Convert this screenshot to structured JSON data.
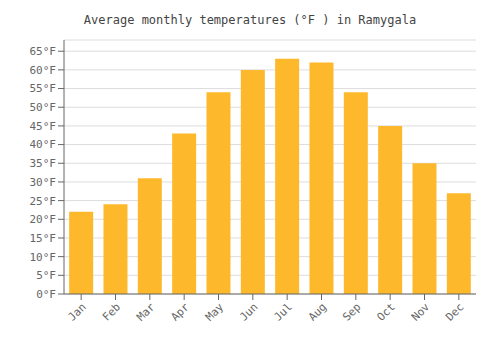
{
  "chart_data": {
    "type": "bar",
    "title": "Average monthly temperatures (°F ) in Ramygala",
    "categories": [
      "Jan",
      "Feb",
      "Mar",
      "Apr",
      "May",
      "Jun",
      "Jul",
      "Aug",
      "Sep",
      "Oct",
      "Nov",
      "Dec"
    ],
    "values": [
      22,
      24,
      31,
      43,
      54,
      60,
      63,
      62,
      54,
      45,
      35,
      27
    ],
    "color": "#FDB92B",
    "ylim": [
      0,
      68
    ],
    "yticks": [
      {
        "value": 0,
        "label": "0°F"
      },
      {
        "value": 5,
        "label": "5°F"
      },
      {
        "value": 10,
        "label": "10°F"
      },
      {
        "value": 15,
        "label": "15°F"
      },
      {
        "value": 20,
        "label": "20°F"
      },
      {
        "value": 25,
        "label": "25°F"
      },
      {
        "value": 30,
        "label": "30°F"
      },
      {
        "value": 35,
        "label": "35°F"
      },
      {
        "value": 40,
        "label": "40°F"
      },
      {
        "value": 45,
        "label": "45°F"
      },
      {
        "value": 50,
        "label": "50°F"
      },
      {
        "value": 55,
        "label": "55°F"
      },
      {
        "value": 60,
        "label": "60°F"
      },
      {
        "value": 65,
        "label": "65°F"
      }
    ],
    "grid": true
  }
}
